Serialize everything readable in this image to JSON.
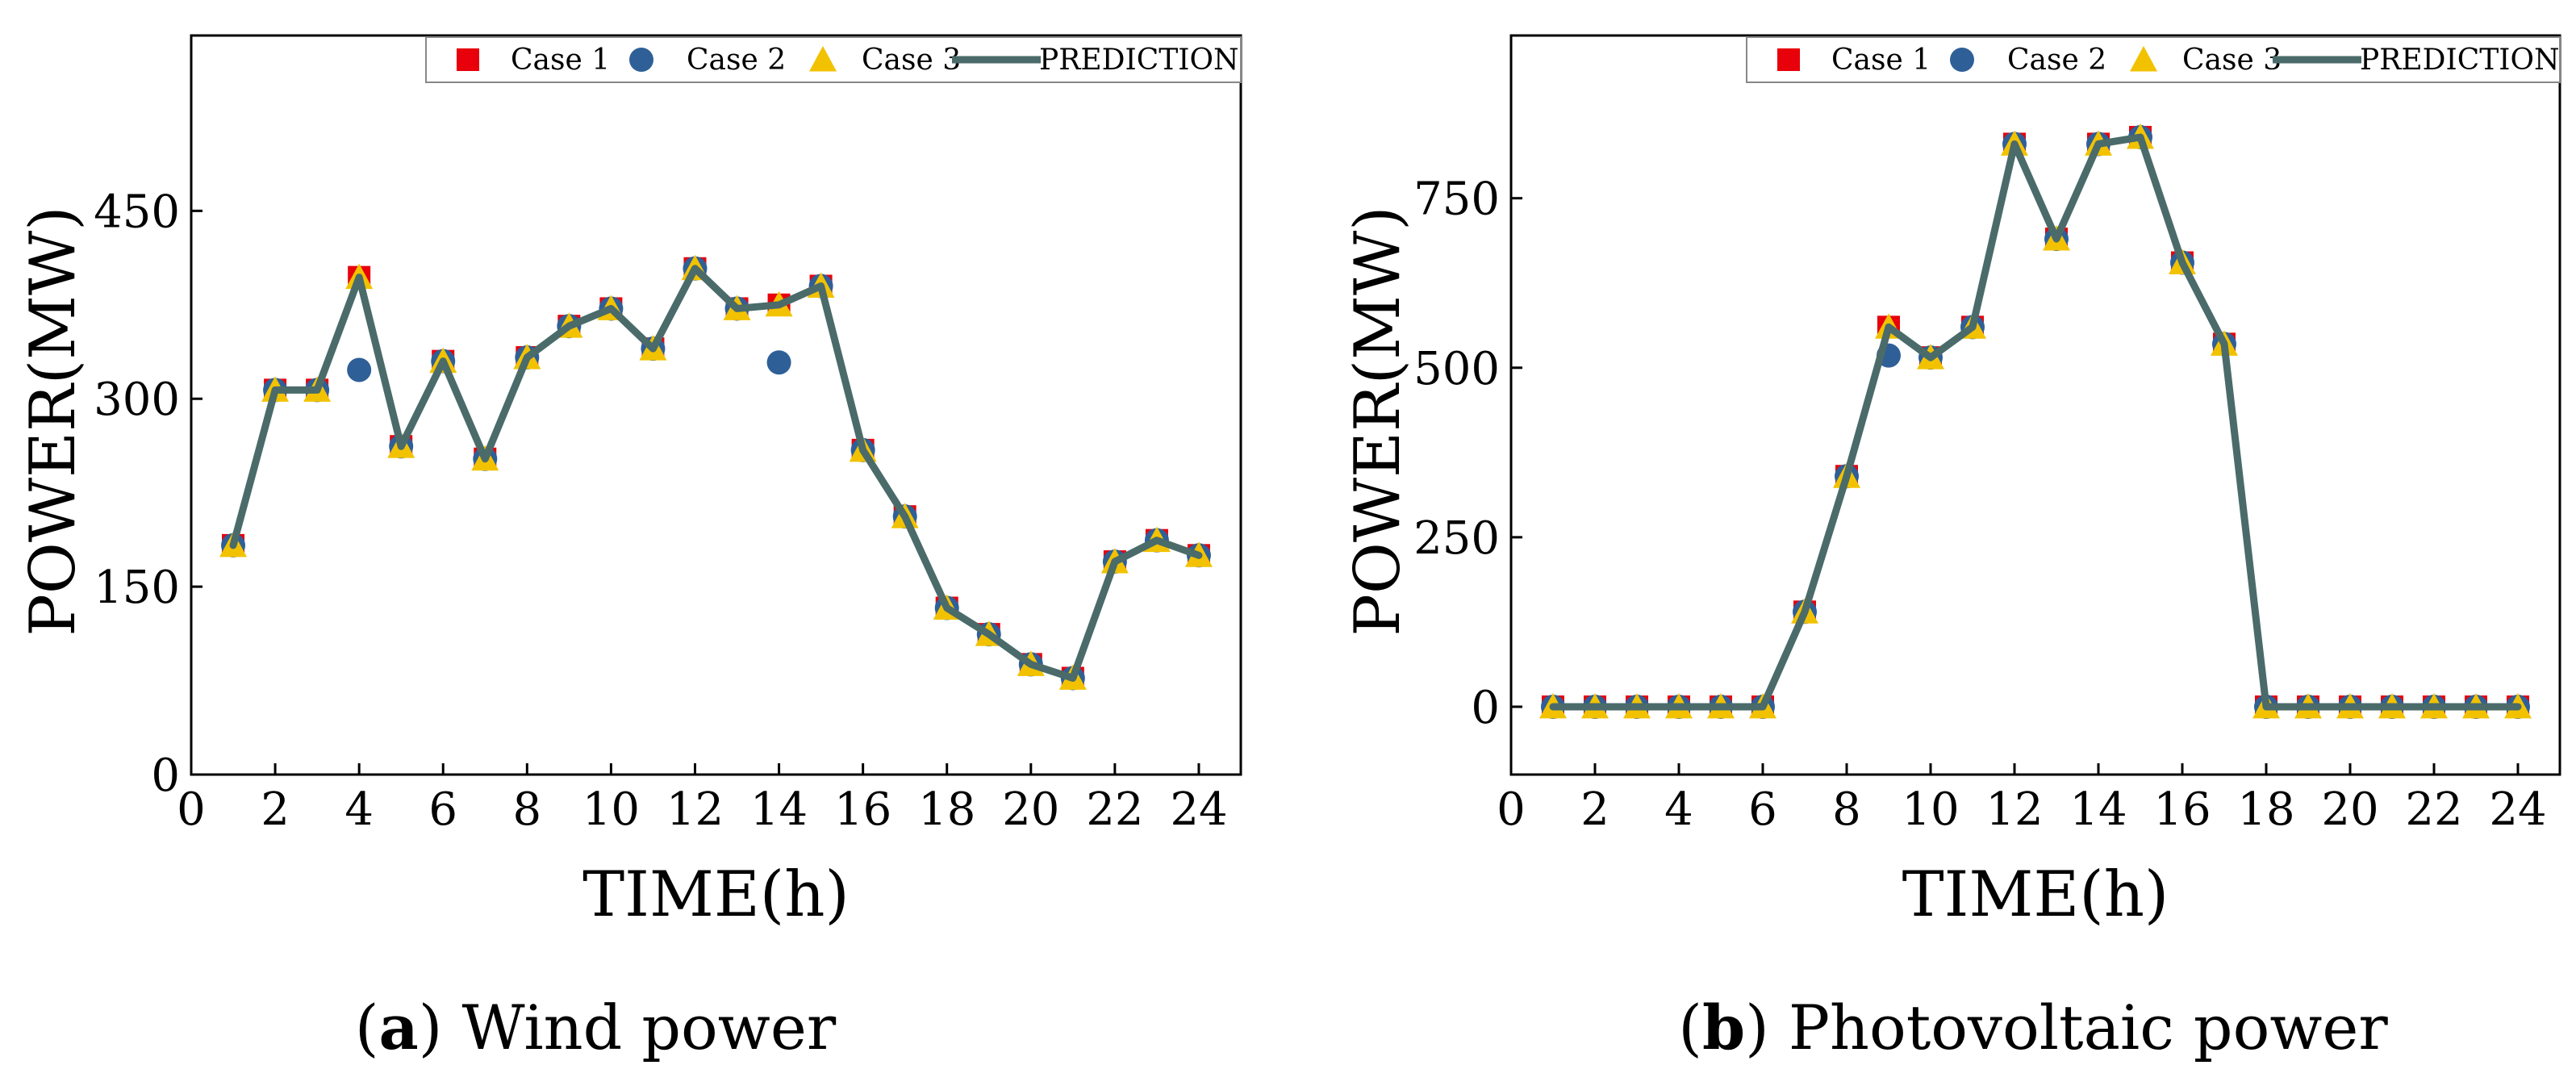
{
  "colors": {
    "case1": "#e8000b",
    "case2": "#2f5f97",
    "case3": "#f2c200",
    "prediction": "#4a6b6a"
  },
  "legend": {
    "case1": "Case 1",
    "case2": "Case 2",
    "case3": "Case 3",
    "prediction": "PREDICTION"
  },
  "chart_data": [
    {
      "id": "a",
      "type": "line",
      "caption_letter": "a",
      "caption_text": " Wind power",
      "xlabel": "TIME(h)",
      "ylabel": "POWER(MW)",
      "xlim": [
        0,
        25
      ],
      "ylim": [
        0,
        590
      ],
      "xticks": [
        0,
        2,
        4,
        6,
        8,
        10,
        12,
        14,
        16,
        18,
        20,
        22,
        24
      ],
      "yticks": [
        0,
        150,
        300,
        450
      ],
      "x": [
        1,
        2,
        3,
        4,
        5,
        6,
        7,
        8,
        9,
        10,
        11,
        12,
        13,
        14,
        15,
        16,
        17,
        18,
        19,
        20,
        21,
        22,
        23,
        24
      ],
      "series": [
        {
          "name": "Case 1",
          "marker": "square",
          "values": [
            183,
            307,
            307,
            397,
            262,
            330,
            252,
            333,
            358,
            372,
            340,
            404,
            372,
            375,
            390,
            259,
            206,
            133,
            112,
            88,
            77,
            170,
            187,
            175
          ]
        },
        {
          "name": "Case 2",
          "marker": "circle",
          "values": [
            183,
            307,
            307,
            323,
            262,
            330,
            252,
            333,
            358,
            372,
            340,
            404,
            372,
            329,
            390,
            259,
            206,
            133,
            112,
            88,
            77,
            170,
            187,
            175
          ]
        },
        {
          "name": "Case 3",
          "marker": "triangle",
          "values": [
            183,
            307,
            307,
            397,
            262,
            330,
            252,
            333,
            358,
            372,
            340,
            404,
            372,
            375,
            390,
            259,
            206,
            133,
            112,
            88,
            77,
            170,
            187,
            175
          ]
        },
        {
          "name": "PREDICTION",
          "marker": "line",
          "values": [
            183,
            307,
            307,
            397,
            262,
            330,
            252,
            333,
            358,
            372,
            340,
            404,
            372,
            375,
            390,
            259,
            206,
            133,
            112,
            88,
            77,
            170,
            187,
            175
          ]
        }
      ]
    },
    {
      "id": "b",
      "type": "line",
      "caption_letter": "b",
      "caption_text": " Photovoltaic power",
      "xlabel": "TIME(h)",
      "ylabel": "POWER(MW)",
      "xlim": [
        0,
        25
      ],
      "ylim": [
        -100,
        990
      ],
      "xticks": [
        0,
        2,
        4,
        6,
        8,
        10,
        12,
        14,
        16,
        18,
        20,
        22,
        24
      ],
      "yticks": [
        0,
        250,
        500,
        750
      ],
      "x": [
        1,
        2,
        3,
        4,
        5,
        6,
        7,
        8,
        9,
        10,
        11,
        12,
        13,
        14,
        15,
        16,
        17,
        18,
        19,
        20,
        21,
        22,
        23,
        24
      ],
      "series": [
        {
          "name": "Case 1",
          "marker": "square",
          "values": [
            0,
            0,
            0,
            0,
            0,
            0,
            140,
            340,
            560,
            515,
            560,
            830,
            690,
            830,
            840,
            655,
            535,
            0,
            0,
            0,
            0,
            0,
            0,
            0
          ]
        },
        {
          "name": "Case 2",
          "marker": "circle",
          "values": [
            0,
            0,
            0,
            0,
            0,
            0,
            140,
            340,
            518,
            515,
            560,
            830,
            690,
            830,
            840,
            655,
            535,
            0,
            0,
            0,
            0,
            0,
            0,
            0
          ]
        },
        {
          "name": "Case 3",
          "marker": "triangle",
          "values": [
            0,
            0,
            0,
            0,
            0,
            0,
            140,
            340,
            560,
            515,
            560,
            830,
            690,
            830,
            840,
            655,
            535,
            0,
            0,
            0,
            0,
            0,
            0,
            0
          ]
        },
        {
          "name": "PREDICTION",
          "marker": "line",
          "values": [
            0,
            0,
            0,
            0,
            0,
            0,
            140,
            340,
            560,
            515,
            560,
            830,
            690,
            830,
            840,
            655,
            535,
            0,
            0,
            0,
            0,
            0,
            0,
            0
          ]
        }
      ]
    }
  ]
}
